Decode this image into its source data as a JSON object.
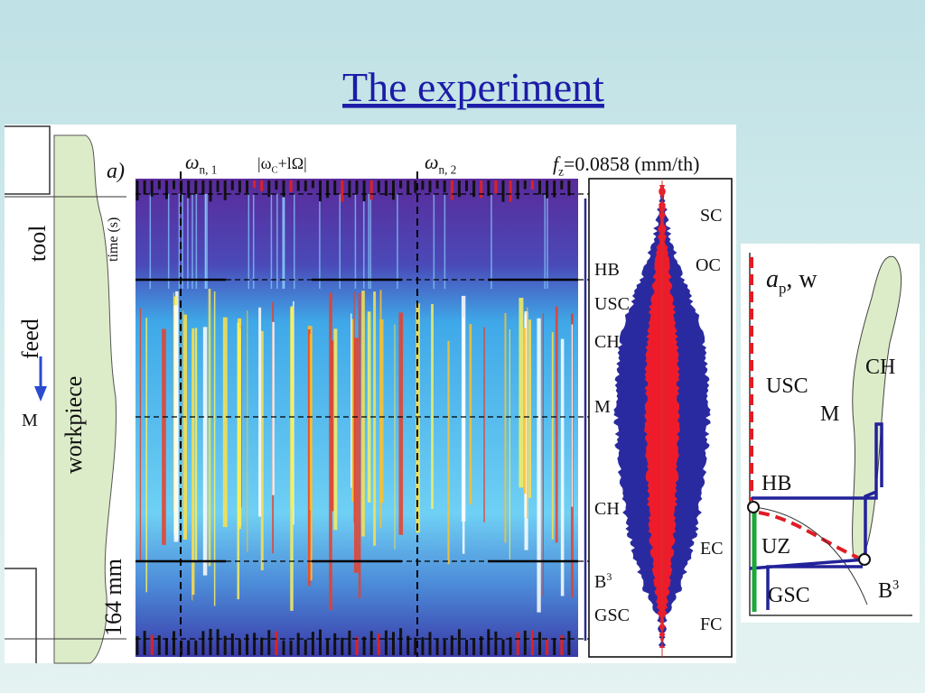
{
  "title": "The experiment",
  "figure_a": {
    "panel": "a)",
    "omega_n1": {
      "symbol": "ω",
      "sub": "n, 1"
    },
    "omega_c": {
      "open": "|ω",
      "sub": "C",
      "rest": "+lΩ|"
    },
    "omega_n2": {
      "symbol": "ω",
      "sub": "n, 2"
    },
    "feed_rate": {
      "symbol": "f",
      "sub": "z",
      "rest": "=0.0858 (mm/th)"
    },
    "time_axis": "time (s)",
    "tool": "tool",
    "feed": "feed",
    "m": "M",
    "workpiece": "workpiece",
    "length": "164 mm",
    "phases_right": [
      "SC",
      "OC",
      "EC",
      "FC"
    ],
    "phases_left": [
      "HB",
      "USC",
      "CH",
      "M",
      "CH",
      "GSC"
    ],
    "b3": {
      "base": "B",
      "sup": "3"
    }
  },
  "figure_b": {
    "ap_w": {
      "base": "a",
      "sub": "p",
      "rest": ", w"
    },
    "labels": [
      "CH",
      "USC",
      "M",
      "HB",
      "UZ",
      "GSC"
    ],
    "b3": {
      "base": "B",
      "sup": "3"
    }
  }
}
